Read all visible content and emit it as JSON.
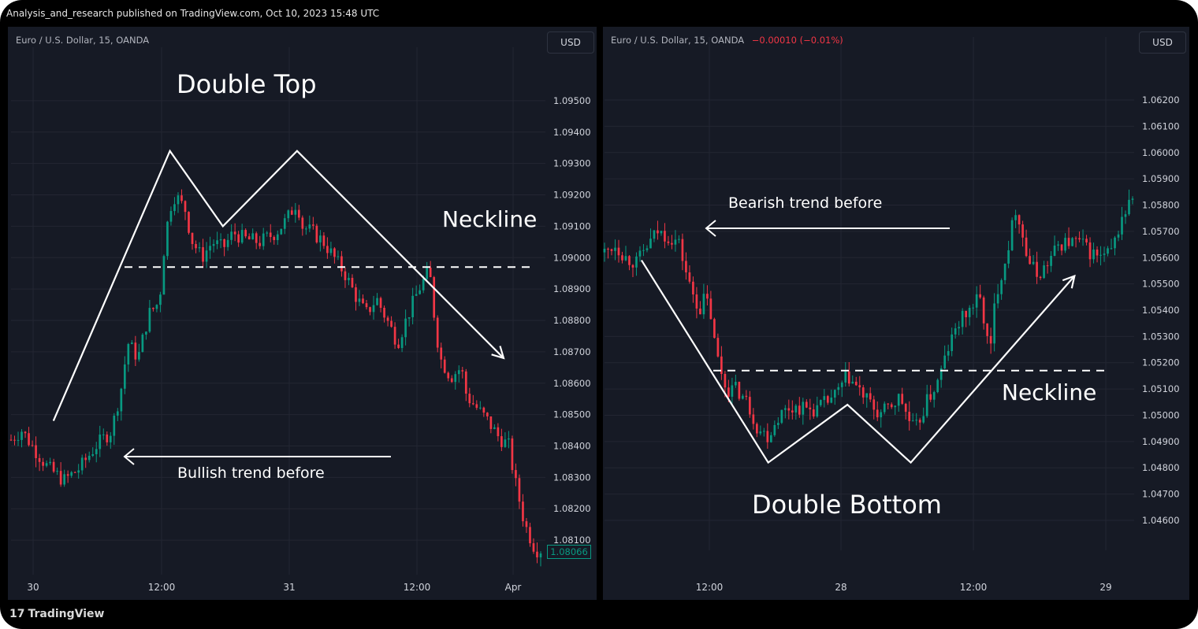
{
  "header": {
    "publish_info": "Analysis_and_research published on TradingView.com, Oct 10, 2023 15:48 UTC"
  },
  "brand": {
    "logo_text": "TradingView",
    "logo_glyph": "17"
  },
  "colors": {
    "background": "#161a25",
    "up": "#089981",
    "down": "#f23645",
    "grid": "#232632",
    "axis_text": "#d1d4dc"
  },
  "chart_data": [
    {
      "type": "candlestick",
      "symbol": "Euro / U.S. Dollar, 15, OANDA",
      "currency_button": "USD",
      "title": "Double Top",
      "y_ticks": [
        "1.09500",
        "1.09400",
        "1.09300",
        "1.09200",
        "1.09100",
        "1.09000",
        "1.08900",
        "1.08800",
        "1.08700",
        "1.08600",
        "1.08500",
        "1.08400",
        "1.08300",
        "1.08200",
        "1.08100"
      ],
      "x_ticks": [
        "30",
        "12:00",
        "31",
        "12:00",
        "Apr"
      ],
      "ylim": [
        1.0801,
        1.0957
      ],
      "last_price": "1.08066",
      "neckline_price": 1.0897,
      "annotations": {
        "neckline": "Neckline",
        "trend": "Bullish trend before"
      },
      "pattern_path": [
        [
          0.08,
          1.0848
        ],
        [
          0.3,
          1.0934
        ],
        [
          0.4,
          1.091
        ],
        [
          0.54,
          1.0934
        ],
        [
          0.93,
          1.0868
        ]
      ],
      "close_path": [
        [
          0,
          1.0842
        ],
        [
          0.02,
          1.0845
        ],
        [
          0.04,
          1.084
        ],
        [
          0.07,
          1.0833
        ],
        [
          0.1,
          1.0829
        ],
        [
          0.13,
          1.0833
        ],
        [
          0.16,
          1.084
        ],
        [
          0.19,
          1.0845
        ],
        [
          0.21,
          1.086
        ],
        [
          0.22,
          1.0873
        ],
        [
          0.24,
          1.0868
        ],
        [
          0.26,
          1.0882
        ],
        [
          0.28,
          1.0886
        ],
        [
          0.29,
          1.0905
        ],
        [
          0.3,
          1.0916
        ],
        [
          0.31,
          1.092
        ],
        [
          0.33,
          1.0915
        ],
        [
          0.34,
          1.0906
        ],
        [
          0.36,
          1.09
        ],
        [
          0.38,
          1.0905
        ],
        [
          0.4,
          1.0903
        ],
        [
          0.42,
          1.0908
        ],
        [
          0.44,
          1.0906
        ],
        [
          0.47,
          1.0905
        ],
        [
          0.5,
          1.0908
        ],
        [
          0.52,
          1.0912
        ],
        [
          0.54,
          1.0918
        ],
        [
          0.55,
          1.091
        ],
        [
          0.57,
          1.0908
        ],
        [
          0.59,
          1.0905
        ],
        [
          0.61,
          1.09
        ],
        [
          0.63,
          1.0895
        ],
        [
          0.65,
          1.0888
        ],
        [
          0.67,
          1.0882
        ],
        [
          0.69,
          1.0887
        ],
        [
          0.71,
          1.088
        ],
        [
          0.73,
          1.0873
        ],
        [
          0.75,
          1.0882
        ],
        [
          0.77,
          1.089
        ],
        [
          0.79,
          1.0896
        ],
        [
          0.8,
          1.088
        ],
        [
          0.81,
          1.0868
        ],
        [
          0.83,
          1.0862
        ],
        [
          0.85,
          1.0865
        ],
        [
          0.86,
          1.0856
        ],
        [
          0.88,
          1.0852
        ],
        [
          0.9,
          1.0848
        ],
        [
          0.92,
          1.0843
        ],
        [
          0.94,
          1.084
        ],
        [
          0.95,
          1.083
        ],
        [
          0.97,
          1.0815
        ],
        [
          0.99,
          1.0807
        ]
      ]
    },
    {
      "type": "candlestick",
      "symbol": "Euro / U.S. Dollar, 15, OANDA",
      "change": "−0.00010 (−0.01%)",
      "currency_button": "USD",
      "title": "Double Bottom",
      "y_ticks": [
        "1.06200",
        "1.06100",
        "1.06000",
        "1.05900",
        "1.05800",
        "1.05700",
        "1.05600",
        "1.05500",
        "1.05400",
        "1.05300",
        "1.05200",
        "1.05100",
        "1.05000",
        "1.04900",
        "1.04800",
        "1.04700",
        "1.04600"
      ],
      "x_ticks": [
        "12:00",
        "28",
        "12:00",
        "29"
      ],
      "ylim": [
        1.0451,
        1.0632
      ],
      "neckline_price": 1.0517,
      "annotations": {
        "neckline": "Neckline",
        "trend": "Bearish trend before"
      },
      "pattern_path": [
        [
          0.07,
          1.0559
        ],
        [
          0.31,
          1.0482
        ],
        [
          0.46,
          1.0504
        ],
        [
          0.58,
          1.0482
        ],
        [
          0.89,
          1.0553
        ]
      ],
      "close_path": [
        [
          0,
          1.0562
        ],
        [
          0.02,
          1.0565
        ],
        [
          0.04,
          1.056
        ],
        [
          0.06,
          1.0558
        ],
        [
          0.08,
          1.0564
        ],
        [
          0.1,
          1.057
        ],
        [
          0.12,
          1.0568
        ],
        [
          0.14,
          1.0566
        ],
        [
          0.16,
          1.055
        ],
        [
          0.18,
          1.054
        ],
        [
          0.19,
          1.0545
        ],
        [
          0.2,
          1.054
        ],
        [
          0.21,
          1.0525
        ],
        [
          0.23,
          1.051
        ],
        [
          0.25,
          1.051
        ],
        [
          0.27,
          1.0505
        ],
        [
          0.29,
          1.0495
        ],
        [
          0.31,
          1.0492
        ],
        [
          0.33,
          1.05
        ],
        [
          0.35,
          1.0503
        ],
        [
          0.37,
          1.0503
        ],
        [
          0.4,
          1.0502
        ],
        [
          0.42,
          1.0505
        ],
        [
          0.44,
          1.0508
        ],
        [
          0.46,
          1.0515
        ],
        [
          0.48,
          1.051
        ],
        [
          0.5,
          1.0505
        ],
        [
          0.52,
          1.05
        ],
        [
          0.54,
          1.0503
        ],
        [
          0.56,
          1.0507
        ],
        [
          0.58,
          1.0496
        ],
        [
          0.59,
          1.0495
        ],
        [
          0.61,
          1.0505
        ],
        [
          0.63,
          1.0512
        ],
        [
          0.65,
          1.0525
        ],
        [
          0.67,
          1.0535
        ],
        [
          0.69,
          1.054
        ],
        [
          0.71,
          1.0545
        ],
        [
          0.72,
          1.0535
        ],
        [
          0.73,
          1.0522
        ],
        [
          0.74,
          1.0545
        ],
        [
          0.76,
          1.056
        ],
        [
          0.78,
          1.058
        ],
        [
          0.79,
          1.057
        ],
        [
          0.8,
          1.056
        ],
        [
          0.82,
          1.0553
        ],
        [
          0.84,
          1.0558
        ],
        [
          0.86,
          1.0565
        ],
        [
          0.88,
          1.0566
        ],
        [
          0.9,
          1.0566
        ],
        [
          0.92,
          1.0562
        ],
        [
          0.94,
          1.056
        ],
        [
          0.96,
          1.0562
        ],
        [
          0.98,
          1.0575
        ],
        [
          1.0,
          1.0583
        ]
      ]
    }
  ]
}
